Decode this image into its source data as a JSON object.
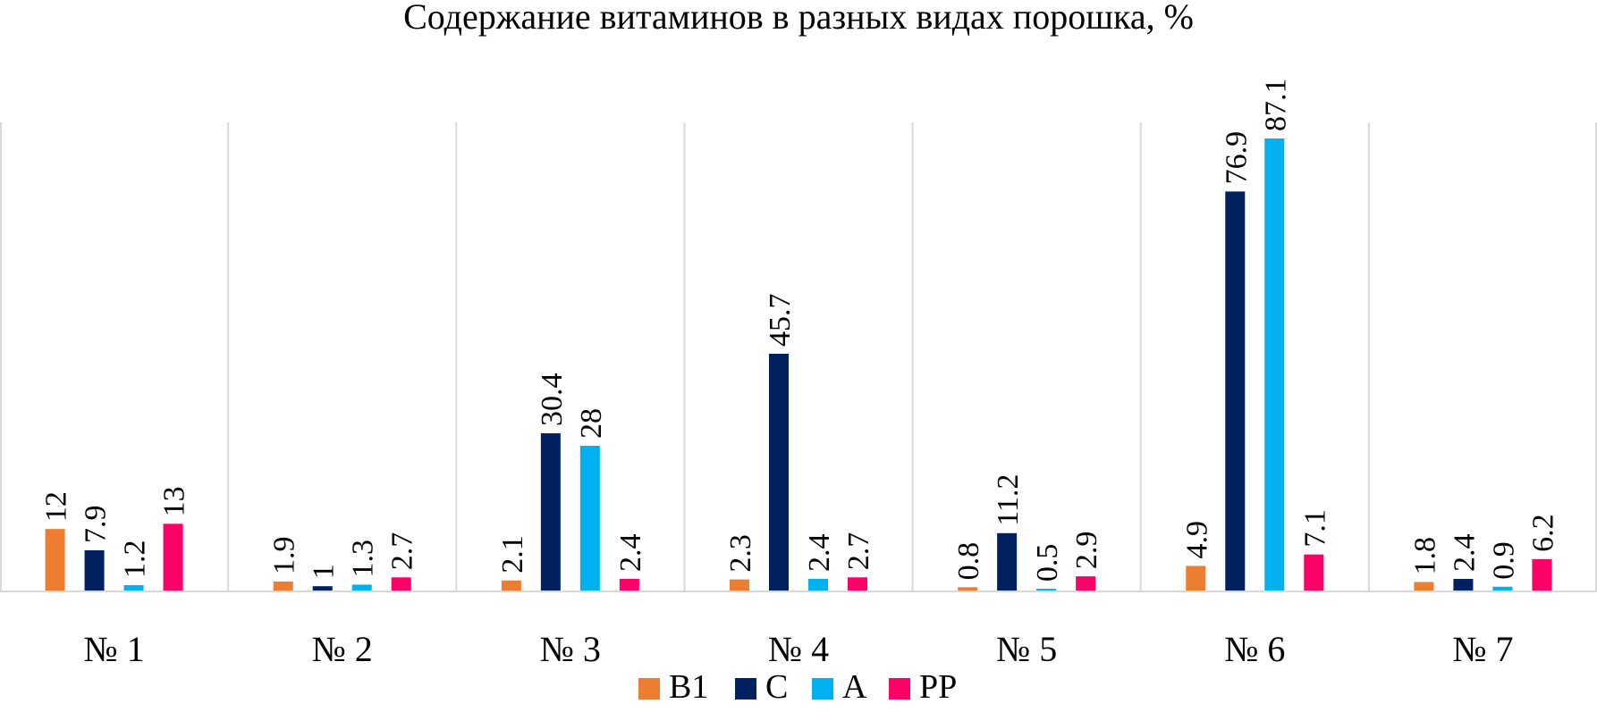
{
  "chart_data": {
    "type": "bar",
    "title": "Содержание витаминов в разных видах порошка, %",
    "xlabel": "",
    "ylabel": "",
    "categories": [
      "№ 1",
      "№ 2",
      "№ 3",
      "№ 4",
      "№ 5",
      "№ 6",
      "№ 7"
    ],
    "series": [
      {
        "name": "B1",
        "color": "#ED7D31",
        "values": [
          12,
          1.9,
          2.1,
          2.3,
          0.8,
          4.9,
          1.8
        ]
      },
      {
        "name": "C",
        "color": "#002060",
        "values": [
          7.9,
          1,
          30.4,
          45.7,
          11.2,
          76.9,
          2.4
        ]
      },
      {
        "name": "A",
        "color": "#00B0F0",
        "values": [
          1.2,
          1.3,
          28,
          2.4,
          0.5,
          87.1,
          0.9
        ]
      },
      {
        "name": "PP",
        "color": "#FF0066",
        "values": [
          13,
          2.7,
          2.4,
          2.7,
          2.9,
          7.1,
          6.2
        ]
      }
    ],
    "data_labels": [
      [
        "12",
        "7.9",
        "1.2",
        "13"
      ],
      [
        "1.9",
        "1",
        "1.3",
        "2.7"
      ],
      [
        "2.1",
        "30.4",
        "28",
        "2.4"
      ],
      [
        "2.3",
        "45.7",
        "2.4",
        "2.7"
      ],
      [
        "0.8",
        "11.2",
        "0.5",
        "2.9"
      ],
      [
        "4.9",
        "76.9",
        "87.1",
        "7.1"
      ],
      [
        "1.8",
        "2.4",
        "0.9",
        "6.2"
      ]
    ],
    "ylim": [
      0,
      87.1
    ],
    "y_axis_visible": false,
    "grid": "vertical category separators",
    "legend_position": "bottom"
  }
}
